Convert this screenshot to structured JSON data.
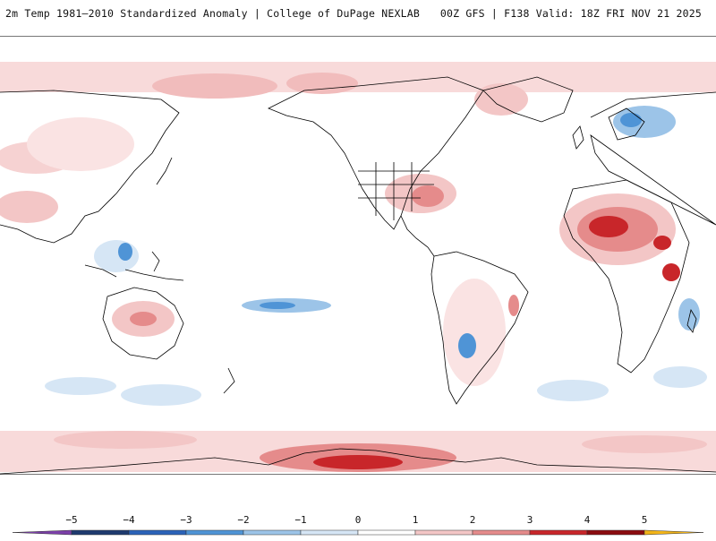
{
  "header": {
    "title": "2m Temp 1981–2010 Standardized Anomaly | College of DuPage NEXLAB",
    "run_info": "00Z GFS | F138 Valid: 18Z FRI NOV 21 2025"
  },
  "legend": {
    "ticks": [
      "−5",
      "−4",
      "−3",
      "−2",
      "−1",
      "0",
      "1",
      "2",
      "3",
      "4",
      "5"
    ],
    "colors": {
      "below_min": "#7b3fa8",
      "n5": "#1e3a6e",
      "n4": "#2b63b8",
      "n3": "#4f94d6",
      "n2": "#9cc4e8",
      "n1": "#d6e6f5",
      "p1": "#ffffff",
      "p2": "#f3c6c6",
      "p3": "#e58b8b",
      "p4": "#c8262a",
      "p5": "#8a0b0f",
      "above_max": "#f2b418"
    }
  },
  "map": {
    "projection": "Plate Carree, centered on 180°",
    "ocean_color": "#ffffff",
    "coastline_color": "#000000"
  }
}
